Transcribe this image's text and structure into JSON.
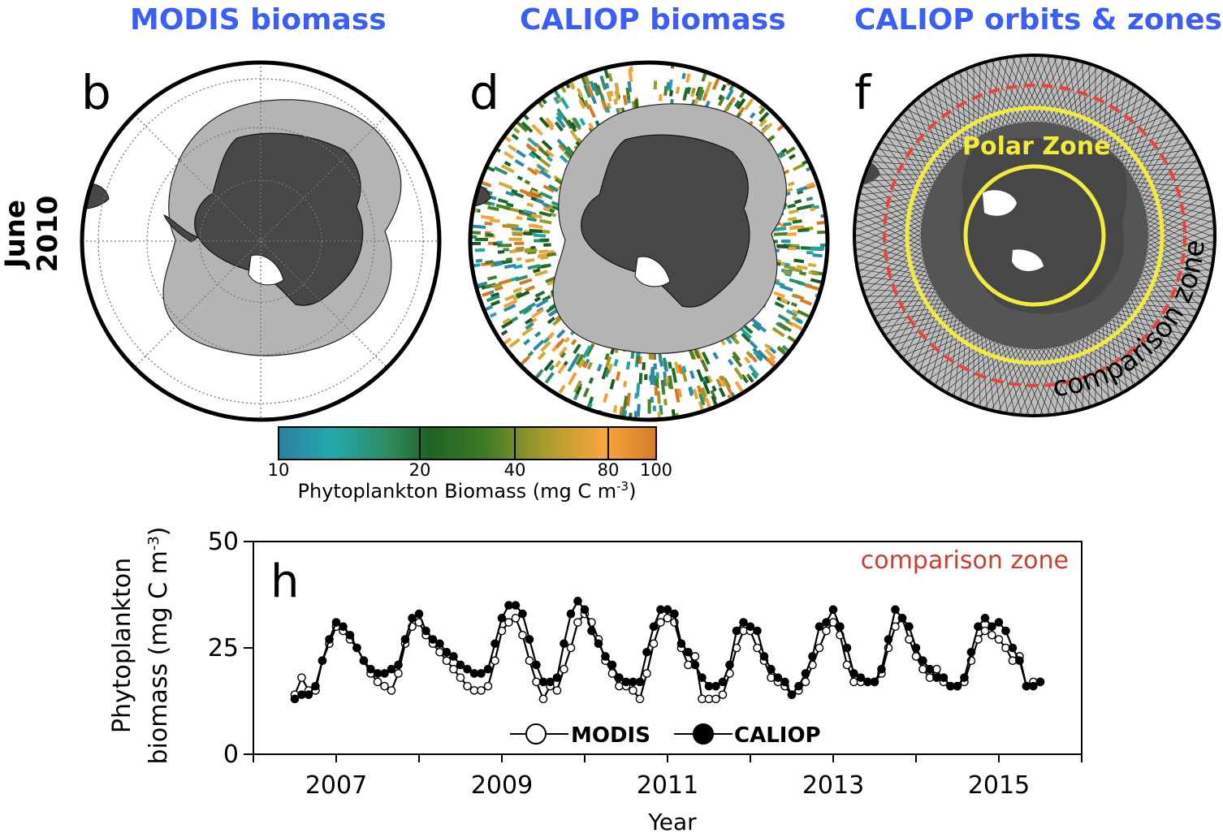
{
  "row_label": "June 2010",
  "panels": [
    {
      "title": "MODIS biomass",
      "label": "b"
    },
    {
      "title": "CALIOP biomass",
      "label": "d"
    },
    {
      "title": "CALIOP orbits & zones",
      "label": "f",
      "zone_label": "Polar Zone",
      "ring_label": "comparison zone"
    }
  ],
  "colorbar": {
    "ticks": [
      "10",
      "20",
      "40",
      "80",
      "100"
    ],
    "label": "Phytoplankton Biomass (mg C m",
    "label_sup": "-3",
    "label_end": ")",
    "colors": [
      "#2a8ba8",
      "#23a2aa",
      "#2f8f6b",
      "#1e6e2a",
      "#1a5a20",
      "#4c7e23",
      "#9b9a2a",
      "#d6aa3a",
      "#f5a23a",
      "#d87a25"
    ]
  },
  "map_colors": {
    "land": "#474747",
    "ice": "#ffffff",
    "sea_ice_zone": "#b4b4b4",
    "ocean": "#ffffff",
    "comparison_ring": "#e8433a",
    "polar_ring": "#f2ea3c",
    "title": "#3b5ef5"
  },
  "chart_data": {
    "type": "line",
    "panel_label": "h",
    "annotation": "comparison zone",
    "annotation_color": "#d23b33",
    "xlabel": "Year",
    "ylabel_line1": "Phytoplankton",
    "ylabel_line2": "biomass (mg C m",
    "ylabel_sup": "-3",
    "ylabel_end": ")",
    "ylim": [
      0,
      50
    ],
    "yticks": [
      "0",
      "25",
      "50"
    ],
    "xlim": [
      2006.0,
      2016.0
    ],
    "xticks": [
      "2007",
      "2009",
      "2011",
      "2013",
      "2015"
    ],
    "x_start": 2006.5,
    "x_step": 0.08333,
    "series": [
      {
        "name": "MODIS",
        "marker": "open",
        "values": [
          14,
          18,
          15,
          15,
          22,
          26,
          30,
          29,
          27,
          25,
          22,
          19,
          17,
          16,
          15,
          19,
          26,
          30,
          31,
          28,
          26,
          24,
          22,
          20,
          18,
          16,
          15,
          15,
          16,
          22,
          29,
          31,
          32,
          28,
          22,
          17,
          13,
          16,
          15,
          20,
          25,
          31,
          33,
          31,
          27,
          22,
          19,
          16,
          16,
          15,
          13,
          19,
          26,
          31,
          32,
          31,
          25,
          21,
          23,
          13,
          13,
          13,
          14,
          19,
          25,
          29,
          29,
          25,
          22,
          18,
          17,
          16,
          14,
          15,
          17,
          21,
          25,
          29,
          31,
          28,
          21,
          17,
          17,
          17,
          17,
          19,
          25,
          30,
          32,
          27,
          23,
          20,
          18,
          20,
          17,
          16,
          16,
          17,
          22,
          27,
          29,
          28,
          27,
          25,
          22,
          23,
          16,
          17,
          17
        ]
      },
      {
        "name": "CALIOP",
        "marker": "filled",
        "values": [
          13,
          14,
          14,
          16,
          22,
          27,
          31,
          30,
          28,
          25,
          22,
          20,
          19,
          19,
          20,
          21,
          27,
          32,
          33,
          29,
          27,
          26,
          24,
          23,
          21,
          20,
          19,
          19,
          20,
          26,
          32,
          35,
          35,
          33,
          27,
          21,
          17,
          17,
          18,
          26,
          33,
          36,
          34,
          29,
          26,
          23,
          21,
          18,
          17,
          17,
          17,
          24,
          30,
          34,
          34,
          33,
          26,
          24,
          21,
          18,
          16,
          16,
          17,
          21,
          29,
          31,
          30,
          29,
          23,
          20,
          18,
          17,
          14,
          16,
          19,
          23,
          30,
          31,
          34,
          30,
          25,
          19,
          18,
          17,
          17,
          20,
          27,
          34,
          32,
          30,
          25,
          22,
          20,
          18,
          18,
          16,
          16,
          18,
          24,
          30,
          32,
          30,
          31,
          29,
          25,
          22,
          16,
          16,
          17
        ]
      }
    ]
  }
}
